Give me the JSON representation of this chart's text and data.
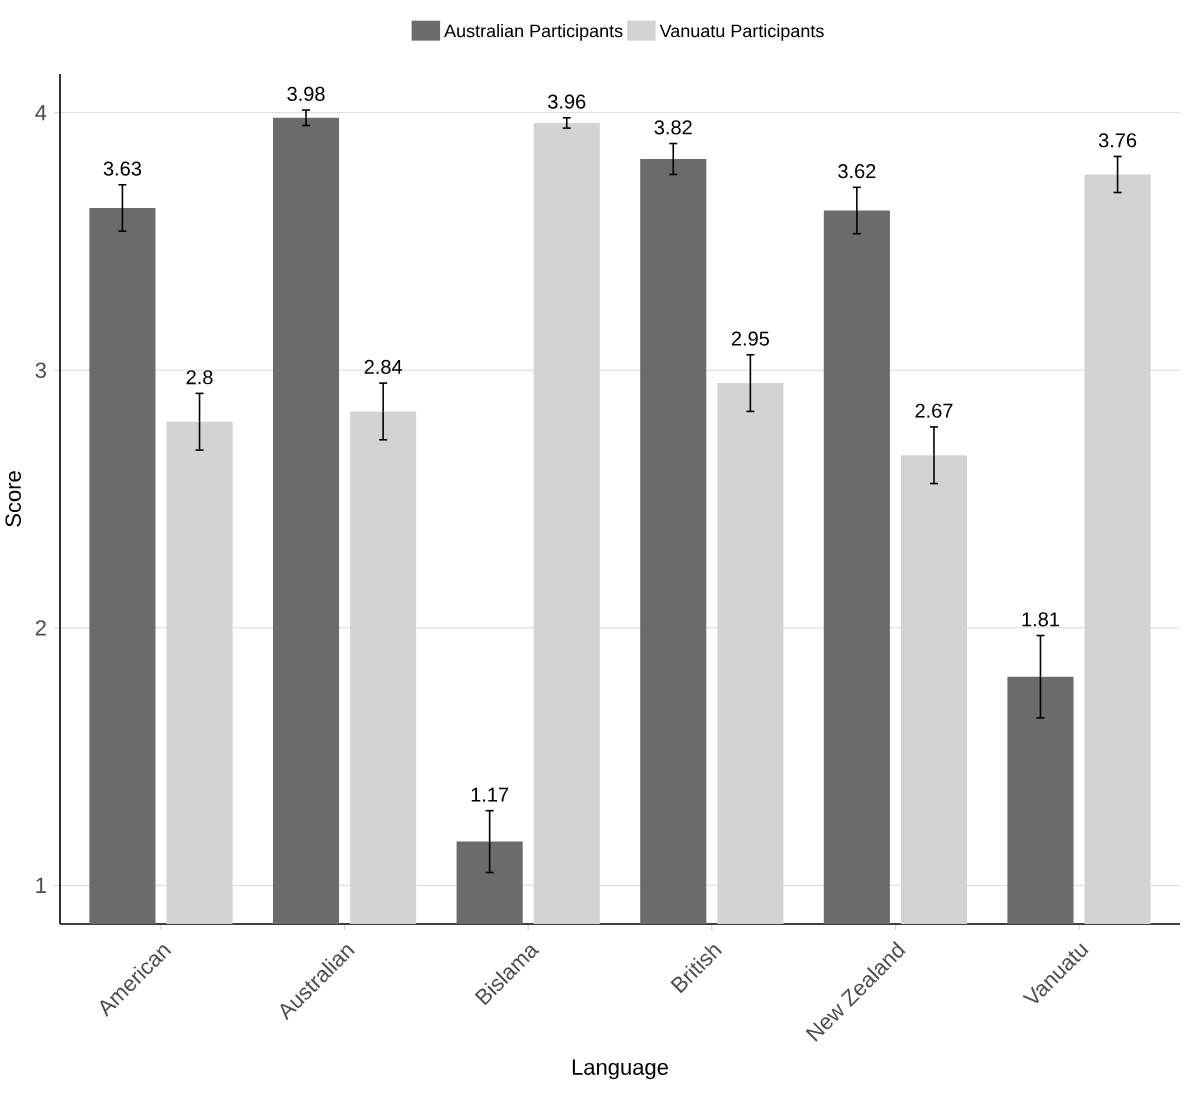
{
  "chart_data": {
    "type": "bar",
    "xlabel": "Language",
    "ylabel": "Score",
    "categories": [
      "American",
      "Australian",
      "Bislama",
      "British",
      "New Zealand",
      "Vanuatu"
    ],
    "series": [
      {
        "name": "Australian Participants",
        "color": "#6b6b6b",
        "values": [
          3.63,
          3.98,
          1.17,
          3.82,
          3.62,
          1.81
        ],
        "errors": [
          0.09,
          0.03,
          0.12,
          0.06,
          0.09,
          0.16
        ]
      },
      {
        "name": "Vanuatu Participants",
        "color": "#d3d3d3",
        "values": [
          2.8,
          2.84,
          3.96,
          2.95,
          2.67,
          3.76
        ],
        "errors": [
          0.11,
          0.11,
          0.02,
          0.11,
          0.11,
          0.07
        ]
      }
    ],
    "ylim": [
      0.85,
      4.15
    ],
    "yticks": [
      1,
      2,
      3,
      4
    ],
    "grid": "y",
    "legend": "top",
    "data_labels": true
  }
}
